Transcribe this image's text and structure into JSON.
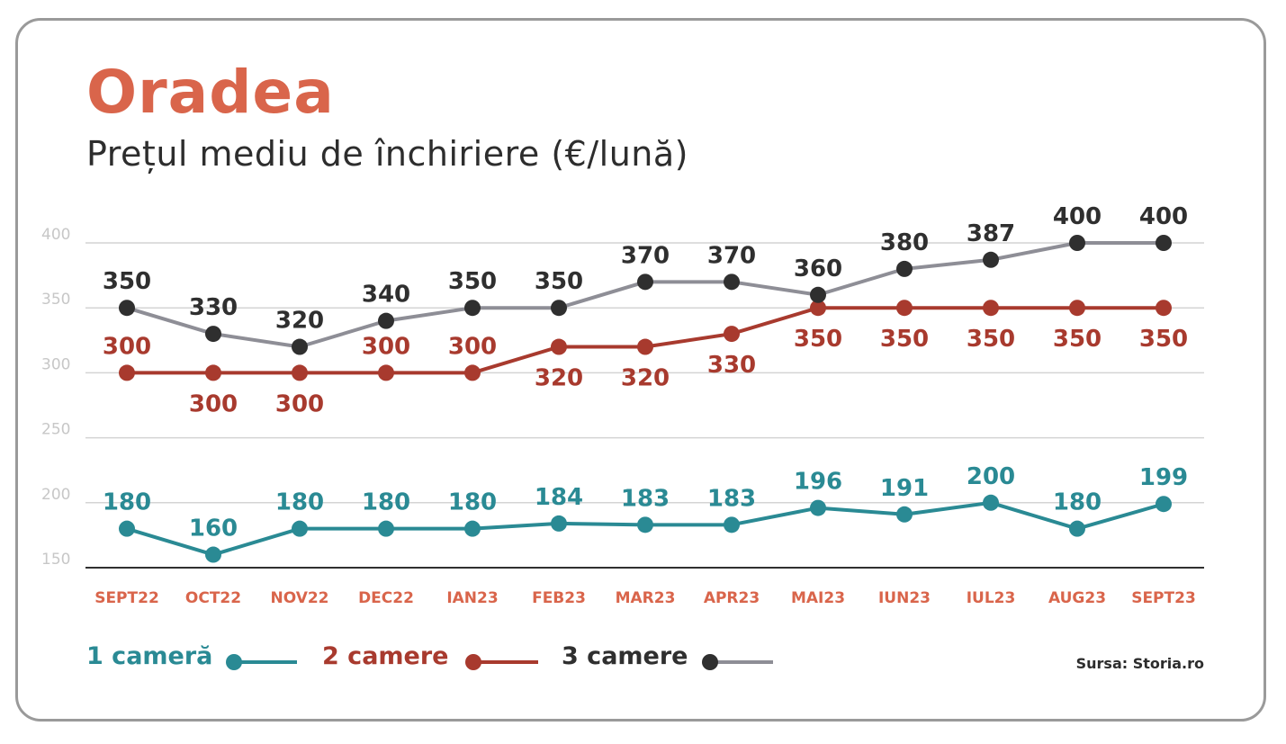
{
  "colors": {
    "title": "#d9654b",
    "series_1": "#2a8a94",
    "series_2": "#a83a2e",
    "series_3_marker": "#2f2f2f",
    "series_3_line": "#8e8e96",
    "grid": "#d4d4d4",
    "tick": "#c7c7c7",
    "category": "#d9654b"
  },
  "chart_data": {
    "type": "line",
    "title": "Oradea",
    "subtitle": "Prețul mediu de închiriere (€/lună)",
    "source": "Sursa: Storia.ro",
    "categories": [
      "SEPT22",
      "OCT22",
      "NOV22",
      "DEC22",
      "IAN23",
      "FEB23",
      "MAR23",
      "APR23",
      "MAI23",
      "IUN23",
      "IUL23",
      "AUG23",
      "SEPT23"
    ],
    "yticks": [
      150,
      200,
      250,
      300,
      350,
      400
    ],
    "ylim": [
      150,
      400
    ],
    "grid": true,
    "legend_position": "bottom-left",
    "series": [
      {
        "name": "1 cameră",
        "values": [
          180,
          160,
          180,
          180,
          180,
          184,
          183,
          183,
          196,
          191,
          200,
          180,
          199
        ]
      },
      {
        "name": "2 camere",
        "values": [
          300,
          300,
          300,
          300,
          300,
          320,
          320,
          330,
          350,
          350,
          350,
          350,
          350
        ]
      },
      {
        "name": "3 camere",
        "values": [
          350,
          330,
          320,
          340,
          350,
          350,
          370,
          370,
          360,
          380,
          387,
          400,
          400
        ]
      }
    ]
  }
}
